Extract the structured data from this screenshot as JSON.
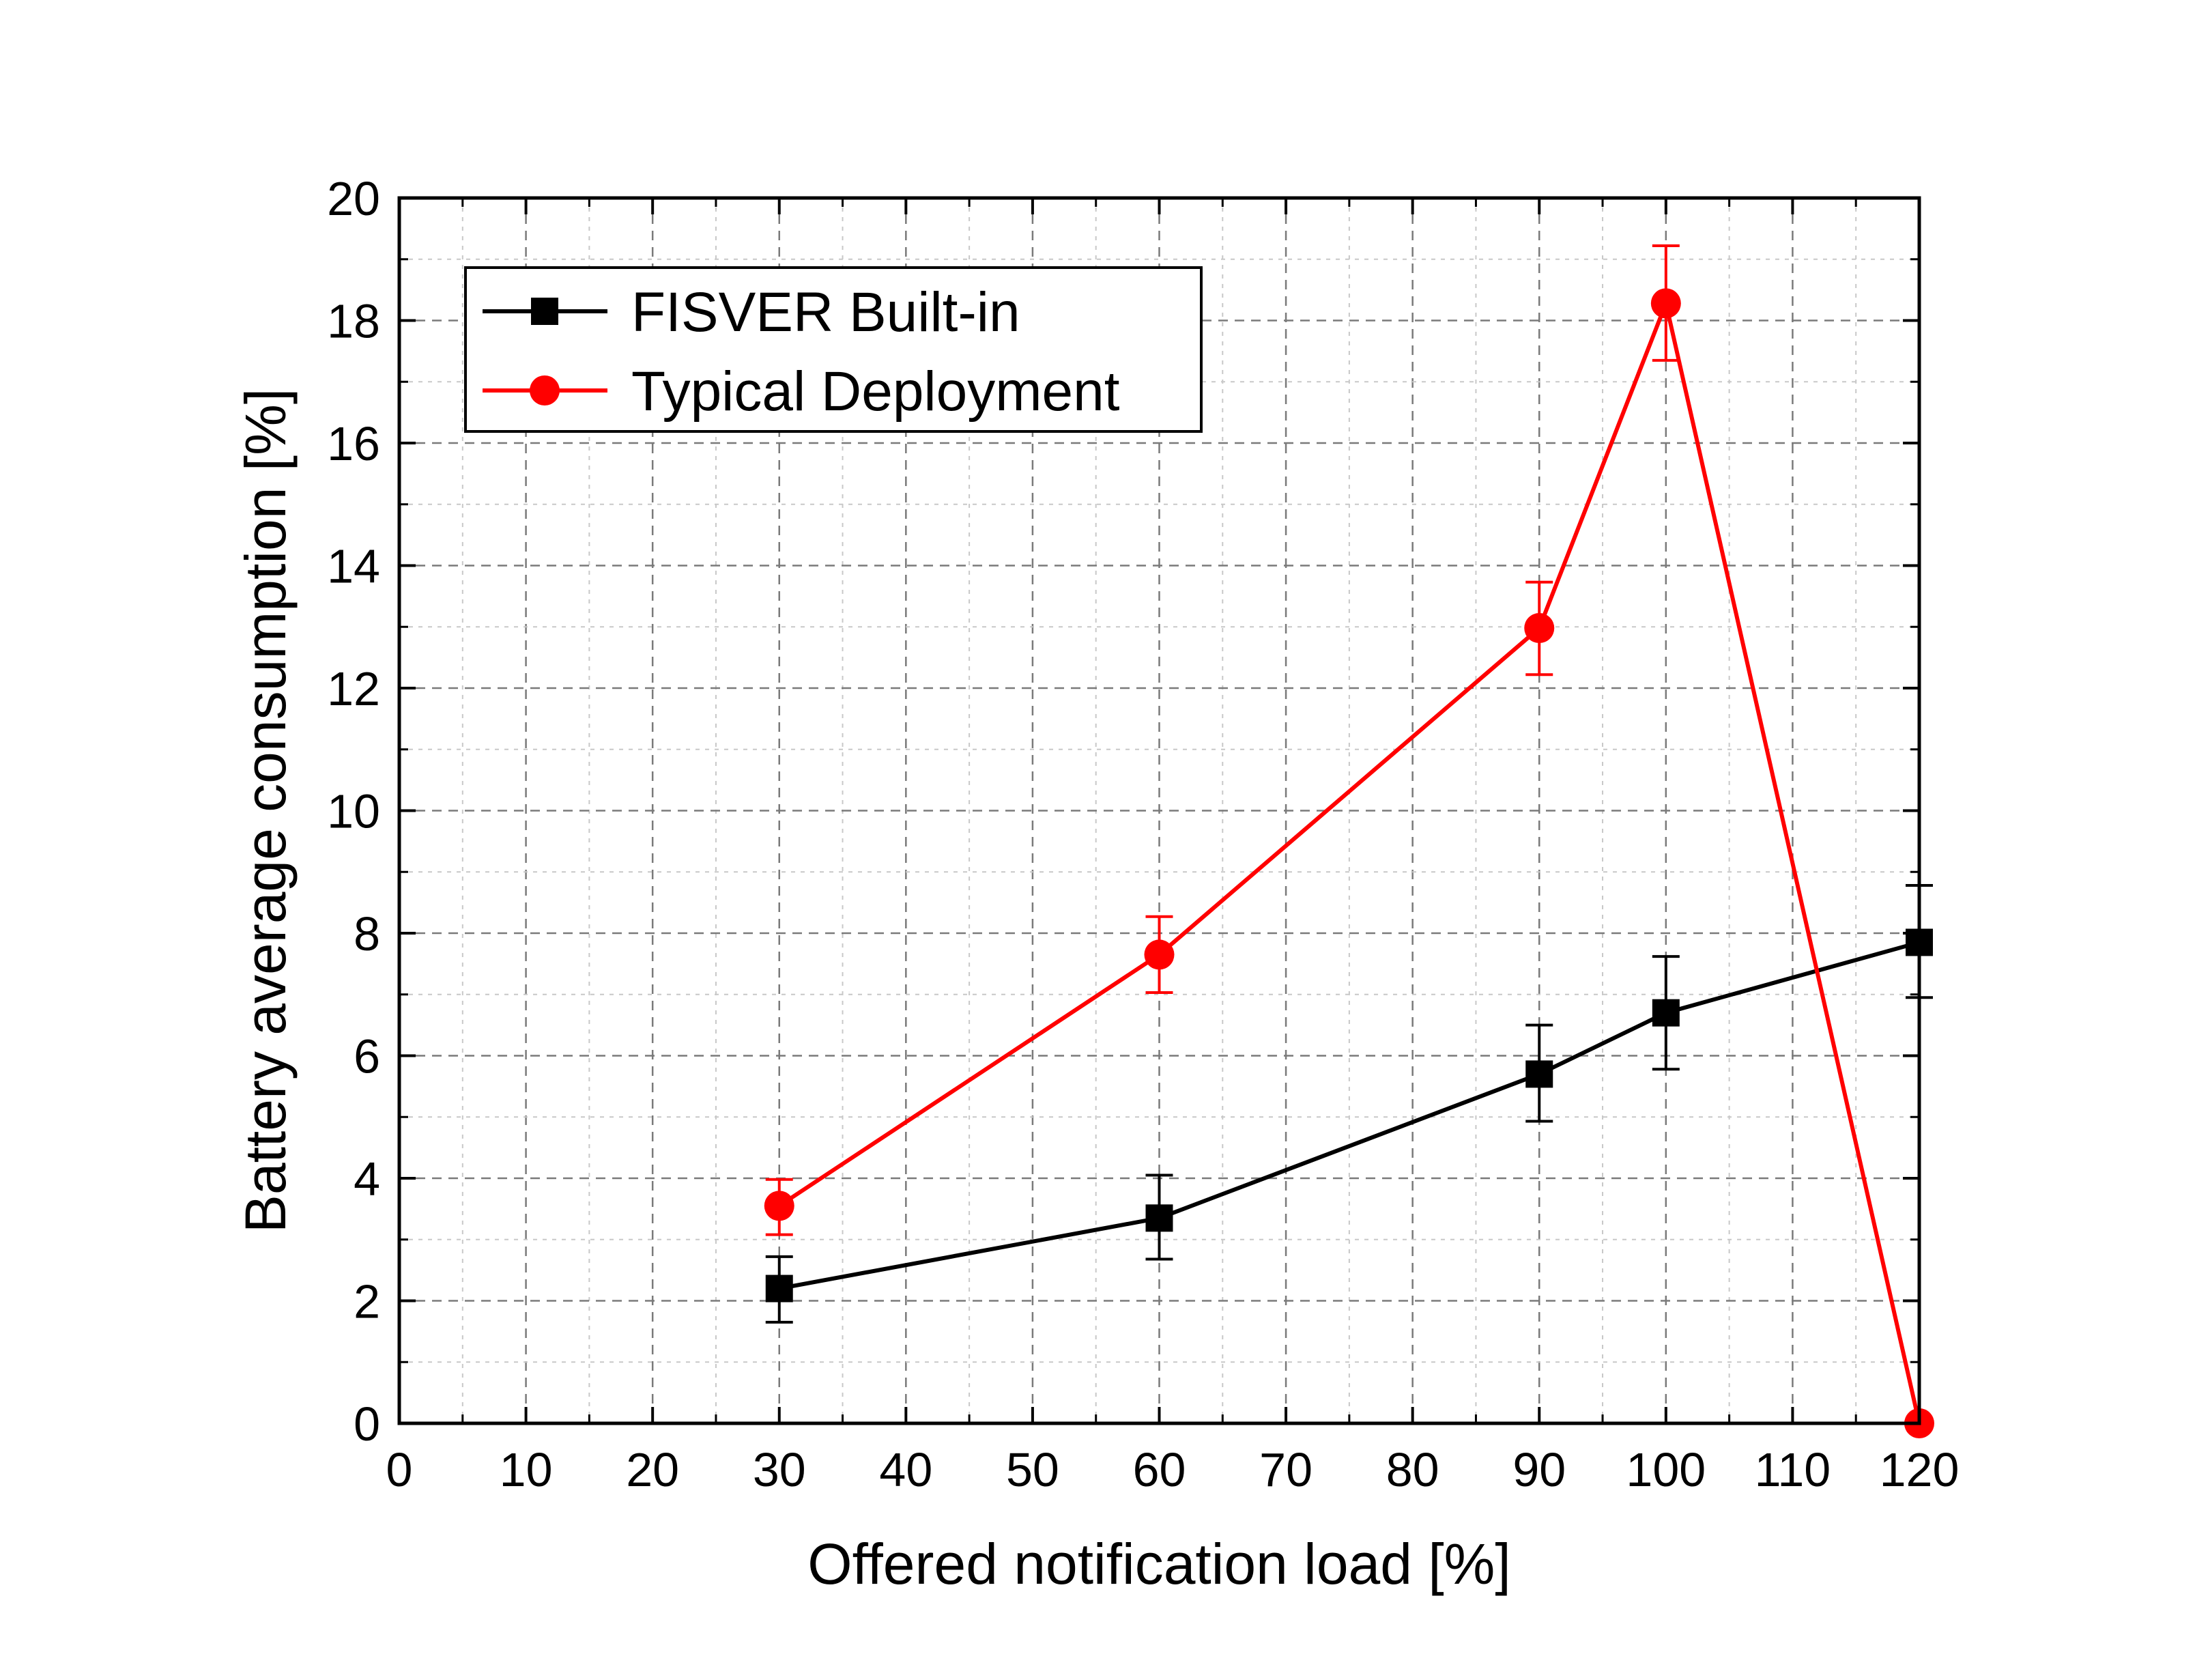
{
  "chart_data": {
    "type": "line",
    "title": "",
    "xlabel": "Offered notification load [%]",
    "ylabel": "Battery average consumption [%]",
    "xlim": [
      0,
      120
    ],
    "ylim": [
      0,
      20
    ],
    "xticks": [
      0,
      10,
      20,
      30,
      40,
      50,
      60,
      70,
      80,
      90,
      100,
      110,
      120
    ],
    "yticks": [
      0,
      2,
      4,
      6,
      8,
      10,
      12,
      14,
      16,
      18,
      20
    ],
    "grid": true,
    "legend_position": "top-left",
    "series": [
      {
        "name": "FISVER Built-in",
        "color": "#000000",
        "marker": "square",
        "x": [
          30,
          60,
          90,
          100,
          120
        ],
        "y": [
          2.2,
          3.35,
          5.7,
          6.7,
          7.85
        ],
        "err_low": [
          1.65,
          2.68,
          4.93,
          5.78,
          6.95
        ],
        "err_high": [
          2.72,
          4.05,
          6.5,
          7.62,
          8.78
        ]
      },
      {
        "name": "Typical Deployment",
        "color": "#ff0000",
        "marker": "circle",
        "x": [
          30,
          60,
          90,
          100,
          120
        ],
        "y": [
          3.55,
          7.65,
          12.98,
          18.28,
          0.0
        ],
        "err_low": [
          3.08,
          7.03,
          12.22,
          17.35,
          0.0
        ],
        "err_high": [
          3.98,
          8.27,
          13.73,
          19.22,
          0.0
        ]
      }
    ]
  }
}
